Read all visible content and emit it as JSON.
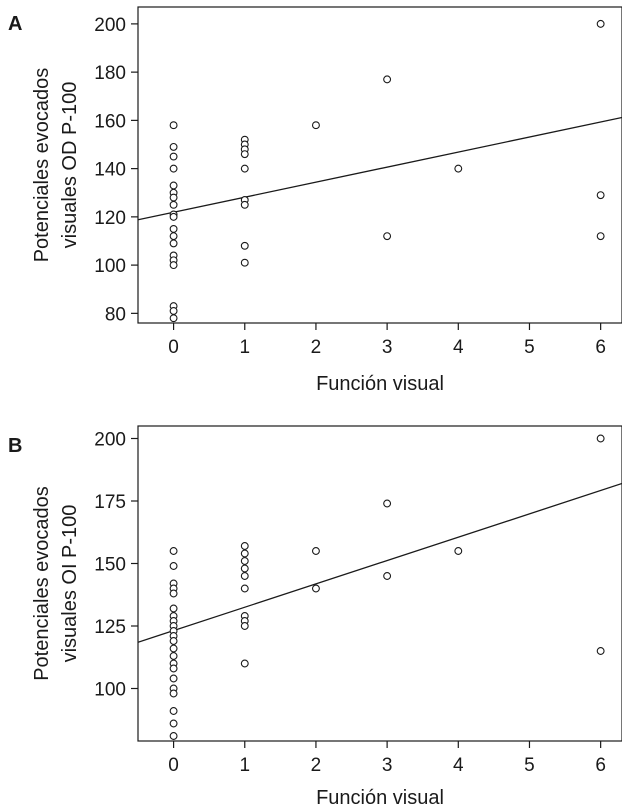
{
  "chart_data": [
    {
      "panel": "A",
      "type": "scatter",
      "xlabel": "Función visual",
      "ylabel": [
        "Potenciales evocados",
        "visuales OD P-100"
      ],
      "xticks": [
        0,
        1,
        2,
        3,
        4,
        5,
        6
      ],
      "yticks": [
        80,
        100,
        120,
        140,
        160,
        180,
        200
      ],
      "xlim": [
        -0.5,
        6.3
      ],
      "ylim": [
        76,
        207
      ],
      "grid": false,
      "points": [
        {
          "x": 0,
          "y": 158
        },
        {
          "x": 0,
          "y": 149
        },
        {
          "x": 0,
          "y": 145
        },
        {
          "x": 0,
          "y": 140
        },
        {
          "x": 0,
          "y": 133
        },
        {
          "x": 0,
          "y": 130
        },
        {
          "x": 0,
          "y": 128
        },
        {
          "x": 0,
          "y": 125
        },
        {
          "x": 0,
          "y": 121
        },
        {
          "x": 0,
          "y": 120
        },
        {
          "x": 0,
          "y": 115
        },
        {
          "x": 0,
          "y": 112
        },
        {
          "x": 0,
          "y": 109
        },
        {
          "x": 0,
          "y": 104
        },
        {
          "x": 0,
          "y": 102
        },
        {
          "x": 0,
          "y": 100
        },
        {
          "x": 0,
          "y": 83
        },
        {
          "x": 0,
          "y": 81
        },
        {
          "x": 0,
          "y": 78
        },
        {
          "x": 1,
          "y": 152
        },
        {
          "x": 1,
          "y": 150
        },
        {
          "x": 1,
          "y": 148
        },
        {
          "x": 1,
          "y": 146
        },
        {
          "x": 1,
          "y": 140
        },
        {
          "x": 1,
          "y": 127
        },
        {
          "x": 1,
          "y": 125
        },
        {
          "x": 1,
          "y": 108
        },
        {
          "x": 1,
          "y": 101
        },
        {
          "x": 2,
          "y": 158
        },
        {
          "x": 3,
          "y": 177
        },
        {
          "x": 3,
          "y": 112
        },
        {
          "x": 4,
          "y": 140
        },
        {
          "x": 6,
          "y": 200
        },
        {
          "x": 6,
          "y": 129
        },
        {
          "x": 6,
          "y": 112
        }
      ],
      "fit_line": {
        "x": [
          -0.5,
          6.3
        ],
        "y": [
          118.8,
          161.2
        ]
      }
    },
    {
      "panel": "B",
      "type": "scatter",
      "xlabel": "Función visual",
      "ylabel": [
        "Potenciales evocados",
        "visuales OI P-100"
      ],
      "xticks": [
        0,
        1,
        2,
        3,
        4,
        5,
        6
      ],
      "yticks": [
        100,
        125,
        150,
        175,
        200
      ],
      "xlim": [
        -0.5,
        6.3
      ],
      "ylim": [
        79,
        205
      ],
      "grid": false,
      "points": [
        {
          "x": 0,
          "y": 155
        },
        {
          "x": 0,
          "y": 149
        },
        {
          "x": 0,
          "y": 142
        },
        {
          "x": 0,
          "y": 140
        },
        {
          "x": 0,
          "y": 138
        },
        {
          "x": 0,
          "y": 132
        },
        {
          "x": 0,
          "y": 129
        },
        {
          "x": 0,
          "y": 127
        },
        {
          "x": 0,
          "y": 125
        },
        {
          "x": 0,
          "y": 123
        },
        {
          "x": 0,
          "y": 121
        },
        {
          "x": 0,
          "y": 119
        },
        {
          "x": 0,
          "y": 116
        },
        {
          "x": 0,
          "y": 113
        },
        {
          "x": 0,
          "y": 110
        },
        {
          "x": 0,
          "y": 108
        },
        {
          "x": 0,
          "y": 104
        },
        {
          "x": 0,
          "y": 100
        },
        {
          "x": 0,
          "y": 98
        },
        {
          "x": 0,
          "y": 91
        },
        {
          "x": 0,
          "y": 86
        },
        {
          "x": 0,
          "y": 81
        },
        {
          "x": 1,
          "y": 157
        },
        {
          "x": 1,
          "y": 154
        },
        {
          "x": 1,
          "y": 151
        },
        {
          "x": 1,
          "y": 148
        },
        {
          "x": 1,
          "y": 145
        },
        {
          "x": 1,
          "y": 140
        },
        {
          "x": 1,
          "y": 129
        },
        {
          "x": 1,
          "y": 127
        },
        {
          "x": 1,
          "y": 125
        },
        {
          "x": 1,
          "y": 110
        },
        {
          "x": 2,
          "y": 155
        },
        {
          "x": 2,
          "y": 140
        },
        {
          "x": 3,
          "y": 174
        },
        {
          "x": 3,
          "y": 145
        },
        {
          "x": 4,
          "y": 155
        },
        {
          "x": 6,
          "y": 200
        },
        {
          "x": 6,
          "y": 115
        }
      ],
      "fit_line": {
        "x": [
          -0.5,
          6.3
        ],
        "y": [
          118.5,
          182.0
        ]
      }
    }
  ]
}
